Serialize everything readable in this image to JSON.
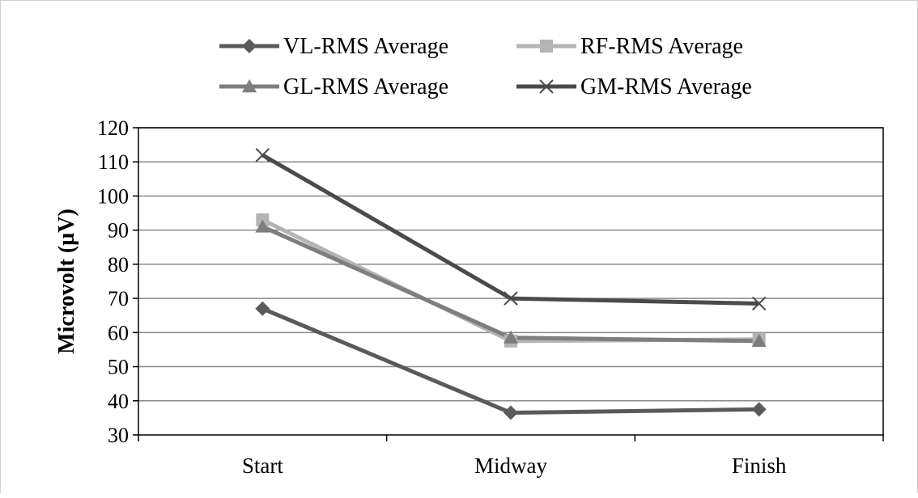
{
  "chart_data": {
    "type": "line",
    "title": "",
    "xlabel": "",
    "ylabel": "Microvolt (µV)",
    "ylim": [
      30,
      120
    ],
    "ytick_step": 10,
    "yticks": [
      "30",
      "40",
      "50",
      "60",
      "70",
      "80",
      "90",
      "100",
      "110",
      "120"
    ],
    "categories": [
      "Start",
      "Midway",
      "Finish"
    ],
    "grid": true,
    "legend_position": "top",
    "series": [
      {
        "name": "VL-RMS Average",
        "values": [
          67,
          36.5,
          37.5
        ],
        "marker": "diamond",
        "color": "#5a5a5a"
      },
      {
        "name": "RF-RMS Average",
        "values": [
          93,
          57.5,
          58
        ],
        "marker": "square",
        "color": "#b4b4b4"
      },
      {
        "name": "GL-RMS Average",
        "values": [
          91,
          58.5,
          57.5
        ],
        "marker": "triangle",
        "color": "#7e7e7e"
      },
      {
        "name": "GM-RMS Average",
        "values": [
          112,
          70,
          68.5
        ],
        "marker": "x",
        "color": "#4a4a4a"
      }
    ],
    "legend_order": [
      0,
      1,
      2,
      3
    ]
  }
}
